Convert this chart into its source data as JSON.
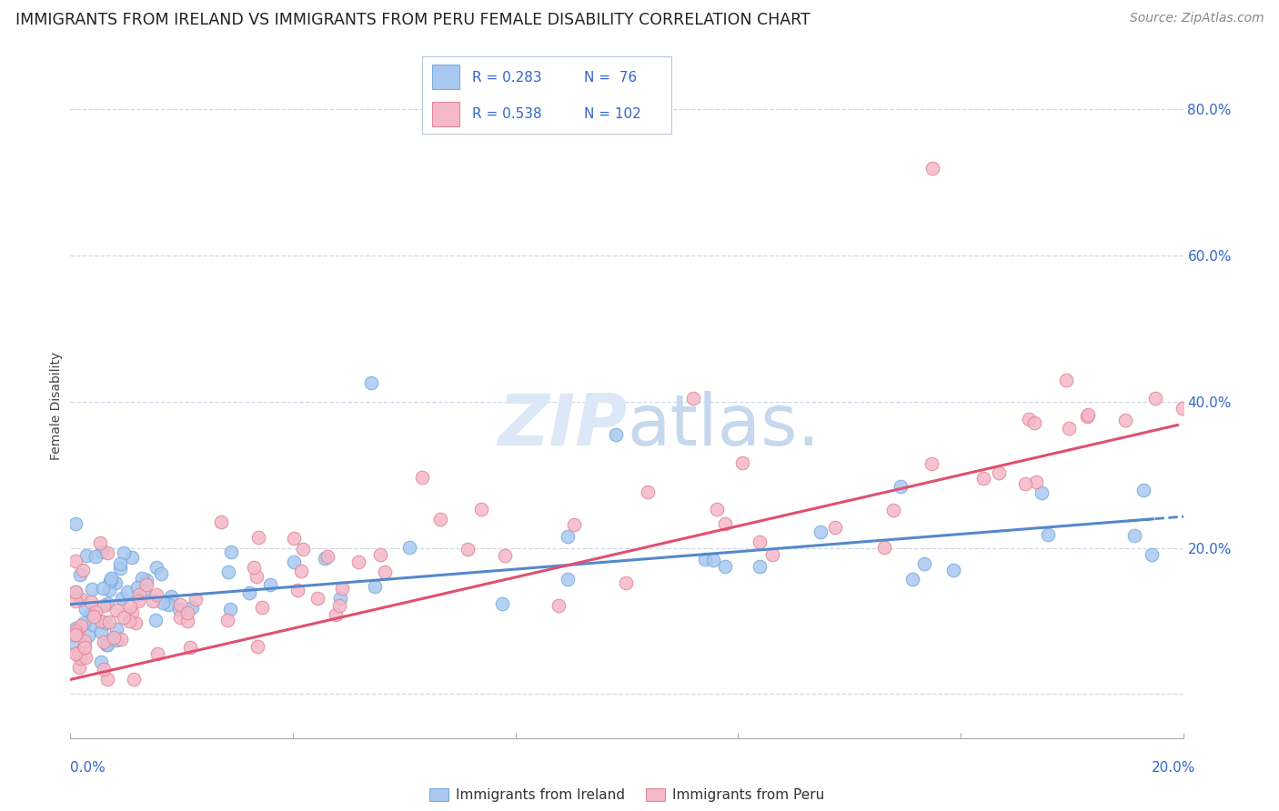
{
  "title": "IMMIGRANTS FROM IRELAND VS IMMIGRANTS FROM PERU FEMALE DISABILITY CORRELATION CHART",
  "source": "Source: ZipAtlas.com",
  "ylabel": "Female Disability",
  "ireland_color": "#a8c8f0",
  "ireland_edge_color": "#7aaadd",
  "peru_color": "#f5b8c8",
  "peru_edge_color": "#e08899",
  "ireland_line_color": "#5588cc",
  "peru_line_color": "#e05070",
  "legend_color": "#3366cc",
  "watermark_color": "#dce8f5",
  "xmin": 0.0,
  "xmax": 0.2,
  "ymin": -0.06,
  "ymax": 0.85,
  "ytick_vals": [
    0.0,
    0.2,
    0.4,
    0.6,
    0.8
  ],
  "ytick_labels": [
    "",
    "20.0%",
    "40.0%",
    "60.0%",
    "80.0%"
  ],
  "grid_color": "#d0d8e8",
  "spine_color": "#aaaaaa",
  "title_fontsize": 12.5,
  "source_fontsize": 10,
  "tick_fontsize": 11,
  "ylabel_fontsize": 10,
  "scatter_size": 110
}
